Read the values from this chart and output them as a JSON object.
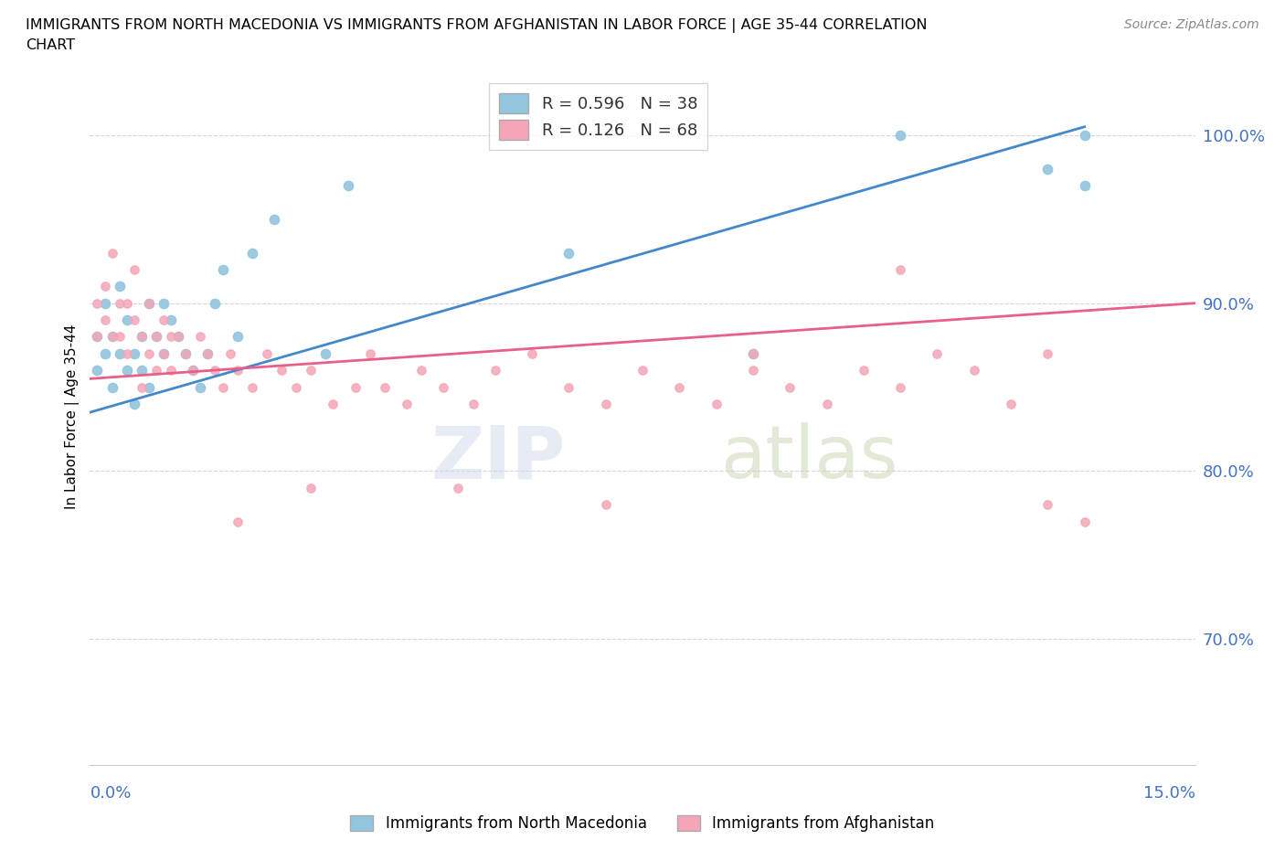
{
  "title_line1": "IMMIGRANTS FROM NORTH MACEDONIA VS IMMIGRANTS FROM AFGHANISTAN IN LABOR FORCE | AGE 35-44 CORRELATION",
  "title_line2": "CHART",
  "source_text": "Source: ZipAtlas.com",
  "ylabel": "In Labor Force | Age 35-44",
  "ytick_labels": [
    "100.0%",
    "90.0%",
    "80.0%",
    "70.0%"
  ],
  "ytick_values": [
    1.0,
    0.9,
    0.8,
    0.7
  ],
  "xlim": [
    0.0,
    0.15
  ],
  "ylim": [
    0.625,
    1.04
  ],
  "legend_r1": "R = 0.596",
  "legend_n1": "N = 38",
  "legend_r2": "R = 0.126",
  "legend_n2": "N = 68",
  "color_blue": "#92c5de",
  "color_pink": "#f4a6b8",
  "color_line_blue": "#4488cc",
  "color_line_pink": "#e8608a",
  "color_axis": "#4472c4",
  "watermark_zip": "ZIP",
  "watermark_atlas": "atlas",
  "nm_trend_x": [
    0.0,
    0.135
  ],
  "nm_trend_y": [
    0.835,
    1.005
  ],
  "af_trend_x": [
    0.0,
    0.15
  ],
  "af_trend_y": [
    0.855,
    0.9
  ],
  "north_macedonia_x": [
    0.001,
    0.001,
    0.002,
    0.002,
    0.003,
    0.003,
    0.004,
    0.004,
    0.005,
    0.005,
    0.006,
    0.006,
    0.007,
    0.007,
    0.008,
    0.008,
    0.009,
    0.01,
    0.01,
    0.011,
    0.012,
    0.013,
    0.014,
    0.015,
    0.016,
    0.017,
    0.018,
    0.02,
    0.022,
    0.025,
    0.032,
    0.035,
    0.065,
    0.13,
    0.135,
    0.135,
    0.11,
    0.09
  ],
  "north_macedonia_y": [
    0.86,
    0.88,
    0.87,
    0.9,
    0.85,
    0.88,
    0.87,
    0.91,
    0.86,
    0.89,
    0.84,
    0.87,
    0.86,
    0.88,
    0.85,
    0.9,
    0.88,
    0.87,
    0.9,
    0.89,
    0.88,
    0.87,
    0.86,
    0.85,
    0.87,
    0.9,
    0.92,
    0.88,
    0.93,
    0.95,
    0.87,
    0.97,
    0.93,
    0.98,
    1.0,
    0.97,
    1.0,
    0.87
  ],
  "afghanistan_x": [
    0.001,
    0.001,
    0.002,
    0.002,
    0.003,
    0.003,
    0.004,
    0.004,
    0.005,
    0.005,
    0.006,
    0.006,
    0.007,
    0.007,
    0.008,
    0.008,
    0.009,
    0.009,
    0.01,
    0.01,
    0.011,
    0.011,
    0.012,
    0.013,
    0.014,
    0.015,
    0.016,
    0.017,
    0.018,
    0.019,
    0.02,
    0.022,
    0.024,
    0.026,
    0.028,
    0.03,
    0.033,
    0.036,
    0.038,
    0.04,
    0.043,
    0.045,
    0.048,
    0.052,
    0.055,
    0.06,
    0.065,
    0.07,
    0.075,
    0.08,
    0.085,
    0.09,
    0.095,
    0.1,
    0.105,
    0.11,
    0.115,
    0.12,
    0.125,
    0.13,
    0.13,
    0.135,
    0.11,
    0.09,
    0.07,
    0.05,
    0.03,
    0.02
  ],
  "afghanistan_y": [
    0.88,
    0.9,
    0.89,
    0.91,
    0.88,
    0.93,
    0.9,
    0.88,
    0.87,
    0.9,
    0.89,
    0.92,
    0.88,
    0.85,
    0.87,
    0.9,
    0.88,
    0.86,
    0.87,
    0.89,
    0.88,
    0.86,
    0.88,
    0.87,
    0.86,
    0.88,
    0.87,
    0.86,
    0.85,
    0.87,
    0.86,
    0.85,
    0.87,
    0.86,
    0.85,
    0.86,
    0.84,
    0.85,
    0.87,
    0.85,
    0.84,
    0.86,
    0.85,
    0.84,
    0.86,
    0.87,
    0.85,
    0.84,
    0.86,
    0.85,
    0.84,
    0.86,
    0.85,
    0.84,
    0.86,
    0.85,
    0.87,
    0.86,
    0.84,
    0.87,
    0.78,
    0.77,
    0.92,
    0.87,
    0.78,
    0.79,
    0.79,
    0.77
  ]
}
